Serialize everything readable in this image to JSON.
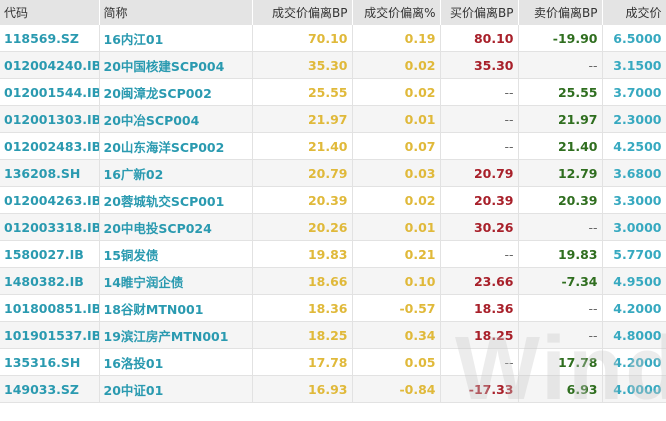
{
  "headers": [
    "代码",
    "简称",
    "成交价偏离BP",
    "成交价偏离%",
    "买价偏离BP",
    "卖价偏离BP",
    "成交价"
  ],
  "rows": [
    [
      "118569.SZ",
      "16内江01",
      "70.10",
      "0.19",
      "80.10",
      "-19.90",
      "6.5000"
    ],
    [
      "012004240.IB",
      "20中国核建SCP004",
      "35.30",
      "0.02",
      "35.30",
      "--",
      "3.1500"
    ],
    [
      "012001544.IB",
      "20闽漳龙SCP002",
      "25.55",
      "0.02",
      "--",
      "25.55",
      "3.7000"
    ],
    [
      "012001303.IB",
      "20中冶SCP004",
      "21.97",
      "0.01",
      "--",
      "21.97",
      "2.3000"
    ],
    [
      "012002483.IB",
      "20山东海洋SCP002",
      "21.40",
      "0.07",
      "--",
      "21.40",
      "4.2500"
    ],
    [
      "136208.SH",
      "16广新02",
      "20.79",
      "0.03",
      "20.79",
      "12.79",
      "3.6800"
    ],
    [
      "012004263.IB",
      "20蓉城轨交SCP001",
      "20.39",
      "0.02",
      "20.39",
      "20.39",
      "3.3000"
    ],
    [
      "012003318.IB",
      "20中电投SCP024",
      "20.26",
      "0.01",
      "30.26",
      "--",
      "3.0000"
    ],
    [
      "1580027.IB",
      "15铜发债",
      "19.83",
      "0.21",
      "--",
      "19.83",
      "5.7700"
    ],
    [
      "1480382.IB",
      "14睢宁润企债",
      "18.66",
      "0.10",
      "23.66",
      "-7.34",
      "4.9500"
    ],
    [
      "101800851.IB",
      "18谷财MTN001",
      "18.36",
      "-0.57",
      "18.36",
      "--",
      "4.2000"
    ],
    [
      "101901537.IB",
      "19滨江房产MTN001",
      "18.25",
      "0.34",
      "18.25",
      "--",
      "4.8000"
    ],
    [
      "135316.SH",
      "16洛投01",
      "17.78",
      "0.05",
      "--",
      "17.78",
      "4.2000"
    ],
    [
      "149033.SZ",
      "20中证01",
      "16.93",
      "-0.84",
      "-17.33",
      "6.93",
      "4.0000"
    ]
  ],
  "colors": {
    "code": "#2a9ab0",
    "bp": "#e0b93a",
    "bid": "#a8202a",
    "ask": "#2f6e1f",
    "price": "#37a9c0",
    "header_bg": "#e4e4e4"
  },
  "watermark": "Wind"
}
